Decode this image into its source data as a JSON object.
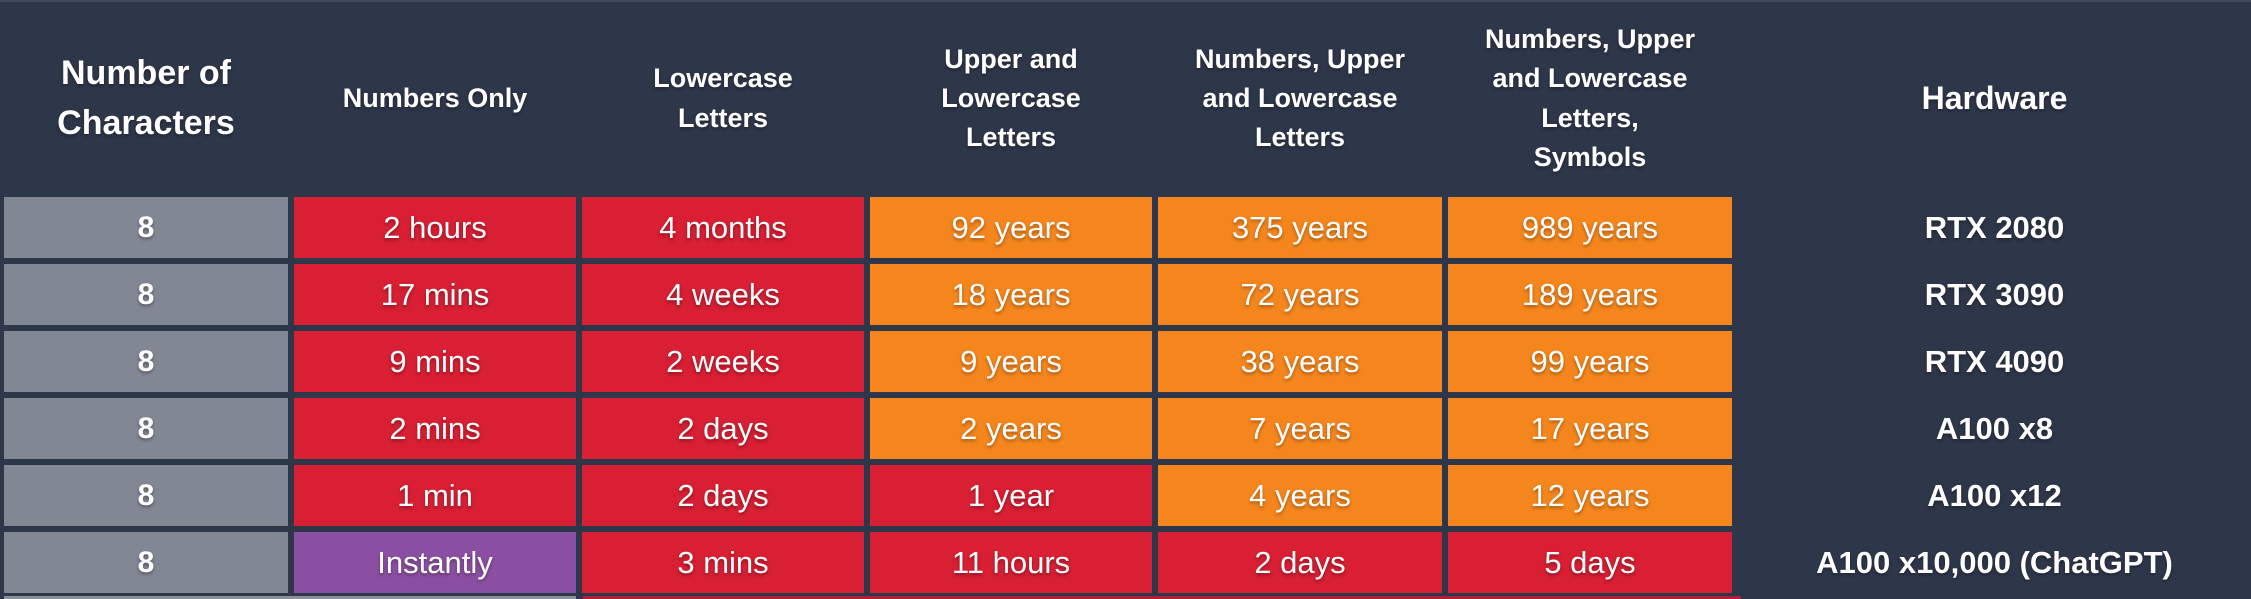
{
  "palette": {
    "background": "#2e3649",
    "gray": "#828794",
    "red": "#d81f33",
    "orange": "#f5861d",
    "purple": "#8b4fa1",
    "text": "#ffffff",
    "edge_gray": "#8b8f99",
    "edge_red": "#aa2139"
  },
  "headers": {
    "characters": "Number of Characters",
    "numbers_only": "Numbers Only",
    "lowercase": "Lowercase Letters",
    "upper_lower": "Upper and Lowercase Letters",
    "num_upper_lower": "Numbers, Upper and Lowercase Letters",
    "num_upper_lower_sym": "Numbers, Upper and Lowercase Letters, Symbols",
    "hardware": "Hardware"
  },
  "rows": [
    {
      "characters": "8",
      "cells": [
        {
          "text": "2 hours",
          "color": "red"
        },
        {
          "text": "4 months",
          "color": "red"
        },
        {
          "text": "92 years",
          "color": "orange"
        },
        {
          "text": "375 years",
          "color": "orange"
        },
        {
          "text": "989 years",
          "color": "orange"
        }
      ],
      "hardware": "RTX 2080"
    },
    {
      "characters": "8",
      "cells": [
        {
          "text": "17 mins",
          "color": "red"
        },
        {
          "text": "4 weeks",
          "color": "red"
        },
        {
          "text": "18 years",
          "color": "orange"
        },
        {
          "text": "72 years",
          "color": "orange"
        },
        {
          "text": "189 years",
          "color": "orange"
        }
      ],
      "hardware": "RTX 3090"
    },
    {
      "characters": "8",
      "cells": [
        {
          "text": "9 mins",
          "color": "red"
        },
        {
          "text": "2 weeks",
          "color": "red"
        },
        {
          "text": "9 years",
          "color": "orange"
        },
        {
          "text": "38 years",
          "color": "orange"
        },
        {
          "text": "99 years",
          "color": "orange"
        }
      ],
      "hardware": "RTX 4090"
    },
    {
      "characters": "8",
      "cells": [
        {
          "text": "2 mins",
          "color": "red"
        },
        {
          "text": "2 days",
          "color": "red"
        },
        {
          "text": "2 years",
          "color": "orange"
        },
        {
          "text": "7 years",
          "color": "orange"
        },
        {
          "text": "17 years",
          "color": "orange"
        }
      ],
      "hardware": "A100 x8"
    },
    {
      "characters": "8",
      "cells": [
        {
          "text": "1 min",
          "color": "red"
        },
        {
          "text": "2 days",
          "color": "red"
        },
        {
          "text": "1 year",
          "color": "red"
        },
        {
          "text": "4 years",
          "color": "orange"
        },
        {
          "text": "12 years",
          "color": "orange"
        }
      ],
      "hardware": "A100 x12"
    },
    {
      "characters": "8",
      "cells": [
        {
          "text": "Instantly",
          "color": "purple"
        },
        {
          "text": "3 mins",
          "color": "red"
        },
        {
          "text": "11 hours",
          "color": "red"
        },
        {
          "text": "2 days",
          "color": "red"
        },
        {
          "text": "5 days",
          "color": "red"
        }
      ],
      "hardware": "A100 x10,000 (ChatGPT)"
    }
  ],
  "chart_data": {
    "type": "table",
    "columns": [
      "Number of Characters",
      "Numbers Only",
      "Lowercase Letters",
      "Upper and Lowercase Letters",
      "Numbers, Upper and Lowercase Letters",
      "Numbers, Upper and Lowercase Letters, Symbols",
      "Hardware"
    ],
    "rows": [
      [
        "8",
        "2 hours",
        "4 months",
        "92 years",
        "375 years",
        "989 years",
        "RTX 2080"
      ],
      [
        "8",
        "17 mins",
        "4 weeks",
        "18 years",
        "72 years",
        "189 years",
        "RTX 3090"
      ],
      [
        "8",
        "9 mins",
        "2 weeks",
        "9 years",
        "38 years",
        "99 years",
        "RTX 4090"
      ],
      [
        "8",
        "2 mins",
        "2 days",
        "2 years",
        "7 years",
        "17 years",
        "A100 x8"
      ],
      [
        "8",
        "1 min",
        "2 days",
        "1 year",
        "4 years",
        "12 years",
        "A100 x12"
      ],
      [
        "8",
        "Instantly",
        "3 mins",
        "11 hours",
        "2 days",
        "5 days",
        "A100 x10,000 (ChatGPT)"
      ]
    ],
    "cell_color_names": [
      [
        "gray",
        "red",
        "red",
        "orange",
        "orange",
        "orange",
        "none"
      ],
      [
        "gray",
        "red",
        "red",
        "orange",
        "orange",
        "orange",
        "none"
      ],
      [
        "gray",
        "red",
        "red",
        "orange",
        "orange",
        "orange",
        "none"
      ],
      [
        "gray",
        "red",
        "red",
        "orange",
        "orange",
        "orange",
        "none"
      ],
      [
        "gray",
        "red",
        "red",
        "red",
        "orange",
        "orange",
        "none"
      ],
      [
        "gray",
        "purple",
        "red",
        "red",
        "red",
        "red",
        "none"
      ]
    ]
  }
}
